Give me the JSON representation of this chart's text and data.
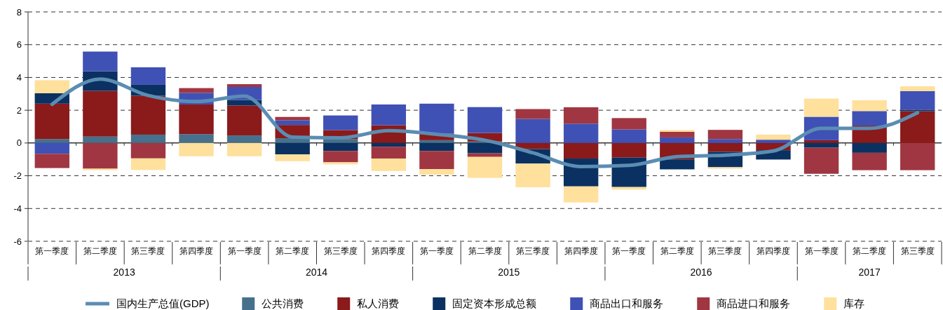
{
  "chart_data": {
    "type": "bar",
    "stacked": true,
    "categories": [
      "第一季度",
      "第二季度",
      "第三季度",
      "第四季度",
      "第一季度",
      "第二季度",
      "第三季度",
      "第四季度",
      "第一季度",
      "第二季度",
      "第三季度",
      "第四季度",
      "第一季度",
      "第二季度",
      "第三季度",
      "第四季度",
      "第一季度",
      "第二季度",
      "第三季度"
    ],
    "annotations": [
      "2013",
      "2014",
      "2015",
      "2016",
      "2017"
    ],
    "ylim": [
      -6,
      8
    ],
    "yticks": [
      -6,
      -4,
      -2,
      0,
      2,
      4,
      6,
      8
    ],
    "grid": "y",
    "legend": "bottom",
    "series": [
      {
        "name": "国内生产总值(GDP)",
        "type": "line",
        "color": "#5b8db3",
        "values": [
          2.36,
          3.9,
          2.9,
          2.53,
          2.86,
          0.36,
          0.32,
          0.75,
          0.53,
          0.17,
          -0.6,
          -1.44,
          -1.37,
          -0.83,
          -0.74,
          -0.49,
          0.89,
          0.89,
          1.85
        ]
      },
      {
        "name": "公共消费",
        "color": "#46708c",
        "values": [
          0.24,
          0.39,
          0.51,
          0.54,
          0.46,
          0.29,
          0.24,
          null,
          0.17,
          0.09,
          null,
          null,
          null,
          null,
          null,
          null,
          null,
          null,
          null
        ]
      },
      {
        "name": "私人消费",
        "color": "#8b1a1a",
        "values": [
          2.16,
          2.79,
          2.37,
          1.81,
          1.83,
          0.81,
          0.55,
          1.08,
          0.4,
          0.52,
          -0.37,
          -0.95,
          -0.89,
          -1.0,
          -0.54,
          -0.44,
          0.17,
          1.06,
          1.94
        ]
      },
      {
        "name": "固定资本形成总额",
        "color": "#0a3161",
        "values": [
          0.64,
          1.2,
          0.67,
          null,
          0.33,
          -0.7,
          -0.49,
          -0.23,
          -0.49,
          -0.63,
          -0.89,
          -1.7,
          -1.8,
          -0.61,
          -0.94,
          -0.57,
          -0.29,
          -0.6,
          0.09
        ]
      },
      {
        "name": "商品出口和服务",
        "color": "#3f51b5",
        "values": [
          -0.66,
          1.2,
          1.07,
          0.71,
          0.8,
          0.29,
          0.89,
          1.27,
          1.83,
          1.58,
          1.47,
          1.18,
          0.83,
          0.34,
          0.24,
          0.2,
          1.43,
          0.89,
          1.14
        ]
      },
      {
        "name": "商品进口和服务",
        "color": "#a03641",
        "values": [
          -0.87,
          -1.57,
          -0.94,
          0.29,
          0.17,
          0.2,
          -0.69,
          -0.72,
          -1.11,
          -0.22,
          0.6,
          1.0,
          0.69,
          0.34,
          0.56,
          null,
          -1.59,
          -1.06,
          -1.66
        ]
      },
      {
        "name": "库存",
        "color": "#ffe09c",
        "values": [
          0.79,
          -0.09,
          -0.71,
          -0.81,
          -0.81,
          -0.41,
          -0.13,
          -0.76,
          -0.33,
          -1.28,
          -1.44,
          -0.98,
          -0.16,
          0.11,
          -0.09,
          0.31,
          1.11,
          0.66,
          0.29
        ]
      }
    ]
  }
}
